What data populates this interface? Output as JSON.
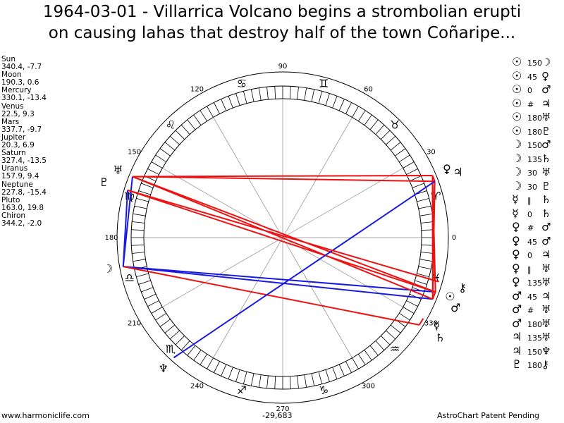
{
  "header": {
    "title_lines": [
      "1964-03-01 - Villarrica Volcano begins a strombolian erupti",
      "on causing lahas that destroy half of the town Coñaripe..."
    ]
  },
  "planets": [
    {
      "name": "Sun",
      "coords": "340.4, -7.7",
      "glyph": "☉"
    },
    {
      "name": "Moon",
      "coords": "190.3, 0.6",
      "glyph": "☽"
    },
    {
      "name": "Mercury",
      "coords": "330.1, -13.4",
      "glyph": "☿"
    },
    {
      "name": "Venus",
      "coords": "22.5, 9.3",
      "glyph": "♀"
    },
    {
      "name": "Mars",
      "coords": "337.7, -9.7",
      "glyph": "♂"
    },
    {
      "name": "Jupiter",
      "coords": "20.3, 6.9",
      "glyph": "♃"
    },
    {
      "name": "Saturn",
      "coords": "327.4, -13.5",
      "glyph": "♄"
    },
    {
      "name": "Uranus",
      "coords": "157.9, 9.4",
      "glyph": "♅"
    },
    {
      "name": "Neptune",
      "coords": "227.8, -15.4",
      "glyph": "♆"
    },
    {
      "name": "Pluto",
      "coords": "163.0, 19.8",
      "glyph": "♇"
    },
    {
      "name": "Chiron",
      "coords": "344.2, -2.0",
      "glyph": "⚷"
    }
  ],
  "aspects": [
    [
      "☉",
      "150",
      "☽"
    ],
    [
      "☉",
      "45",
      "♀"
    ],
    [
      "☉",
      "0",
      "♂"
    ],
    [
      "☉",
      "#",
      "♃"
    ],
    [
      "☉",
      "180",
      "♅"
    ],
    [
      "☉",
      "180",
      "♇"
    ],
    [
      "☽",
      "150",
      "♂"
    ],
    [
      "☽",
      "135",
      "♄"
    ],
    [
      "☽",
      "30",
      "♅"
    ],
    [
      "☽",
      "30",
      "♇"
    ],
    [
      "☿",
      "‖",
      "♄"
    ],
    [
      "☿",
      "0",
      "♄"
    ],
    [
      "♀",
      "#",
      "♂"
    ],
    [
      "♀",
      "45",
      "♂"
    ],
    [
      "♀",
      "0",
      "♃"
    ],
    [
      "♀",
      "‖",
      "♅"
    ],
    [
      "♀",
      "135",
      "♅"
    ],
    [
      "♂",
      "45",
      "♃"
    ],
    [
      "♂",
      "#",
      "♅"
    ],
    [
      "♂",
      "180",
      "♅"
    ],
    [
      "♃",
      "135",
      "♅"
    ],
    [
      "♃",
      "150",
      "♆"
    ],
    [
      "♇",
      "180",
      "⚷"
    ]
  ],
  "wheel": {
    "degree_labels": [
      "0",
      "30",
      "60",
      "90",
      "120",
      "150",
      "180",
      "210",
      "240",
      "270",
      "300",
      "330"
    ],
    "signs": [
      "♈",
      "♉",
      "♊",
      "♋",
      "♌",
      "♍",
      "♎",
      "♏",
      "♐",
      "♑",
      "♒",
      "♓"
    ]
  },
  "footer": {
    "left": "www.harmoniclife.com",
    "center": "-29,683",
    "right": "AstroChart Patent Pending"
  }
}
